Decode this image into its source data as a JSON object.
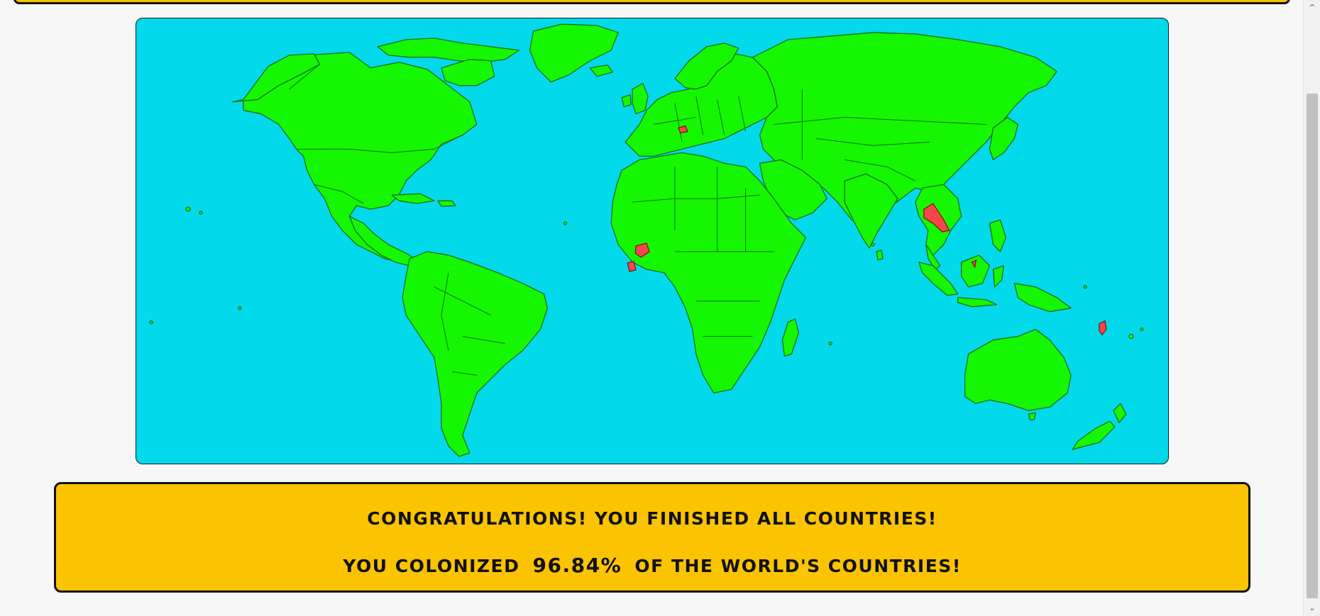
{
  "app": {
    "ocean_color": "#02d9ea",
    "land_color": "#14f700",
    "uncolonized_color": "#f5474a",
    "panel_color": "#fcc300"
  },
  "map": {
    "label": "world map",
    "uncolonized_markers": [
      "red-country"
    ]
  },
  "result": {
    "congrats": "CONGRATULATIONS! YOU FINISHED ALL COUNTRIES!",
    "colonized_prefix": "YOU COLONIZED",
    "colonized_percent": "96.84%",
    "colonized_suffix": "OF THE WORLD'S COUNTRIES!"
  },
  "scrollbar": {
    "up_icon": "chevron-up-icon",
    "down_icon": "chevron-down-icon"
  }
}
